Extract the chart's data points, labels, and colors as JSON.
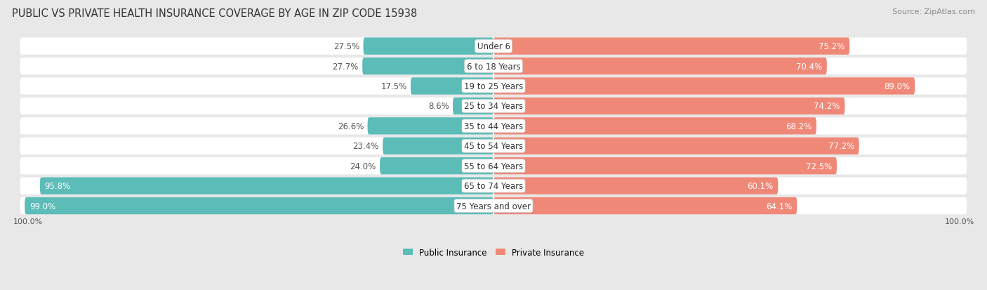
{
  "title": "PUBLIC VS PRIVATE HEALTH INSURANCE COVERAGE BY AGE IN ZIP CODE 15938",
  "source": "Source: ZipAtlas.com",
  "categories": [
    "Under 6",
    "6 to 18 Years",
    "19 to 25 Years",
    "25 to 34 Years",
    "35 to 44 Years",
    "45 to 54 Years",
    "55 to 64 Years",
    "65 to 74 Years",
    "75 Years and over"
  ],
  "public_values": [
    27.5,
    27.7,
    17.5,
    8.6,
    26.6,
    23.4,
    24.0,
    95.8,
    99.0
  ],
  "private_values": [
    75.2,
    70.4,
    89.0,
    74.2,
    68.2,
    77.2,
    72.5,
    60.1,
    64.1
  ],
  "public_color": "#5bbcb8",
  "private_color": "#f08878",
  "row_bg_light": "#f4f4f4",
  "row_bg_dark": "#e8e8e8",
  "background_color": "#e8e8e8",
  "title_fontsize": 10.5,
  "source_fontsize": 8,
  "label_fontsize": 8.5,
  "value_fontsize": 8.5,
  "max_value": 100.0,
  "x_left_label": "100.0%",
  "x_right_label": "100.0%"
}
